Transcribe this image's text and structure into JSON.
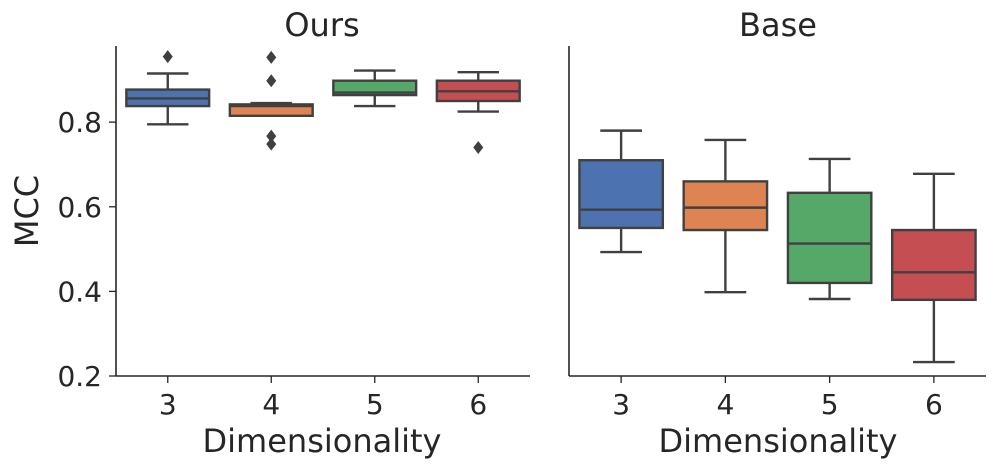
{
  "chart_data": {
    "type": "box",
    "ylabel": "MCC",
    "xlabel": "Dimensionality",
    "ylim": [
      0.2,
      0.98
    ],
    "yticks": [
      0.2,
      0.4,
      0.6,
      0.8
    ],
    "categories": [
      "3",
      "4",
      "5",
      "6"
    ],
    "colors": [
      "#4c72b0",
      "#dd8452",
      "#55a868",
      "#c44e52"
    ],
    "panels": [
      {
        "title": "Ours",
        "boxes": [
          {
            "category": "3",
            "whisker_low": 0.795,
            "q1": 0.838,
            "median": 0.856,
            "q3": 0.877,
            "whisker_high": 0.915,
            "outliers": [
              0.955
            ]
          },
          {
            "category": "4",
            "whisker_low": 0.815,
            "q1": 0.815,
            "median": 0.838,
            "q3": 0.842,
            "whisker_high": 0.845,
            "outliers": [
              0.953,
              0.898,
              0.767,
              0.748
            ]
          },
          {
            "category": "5",
            "whisker_low": 0.838,
            "q1": 0.864,
            "median": 0.87,
            "q3": 0.898,
            "whisker_high": 0.922,
            "outliers": []
          },
          {
            "category": "6",
            "whisker_low": 0.825,
            "q1": 0.85,
            "median": 0.873,
            "q3": 0.898,
            "whisker_high": 0.918,
            "outliers": [
              0.74
            ]
          }
        ]
      },
      {
        "title": "Base",
        "boxes": [
          {
            "category": "3",
            "whisker_low": 0.493,
            "q1": 0.55,
            "median": 0.593,
            "q3": 0.71,
            "whisker_high": 0.78,
            "outliers": []
          },
          {
            "category": "4",
            "whisker_low": 0.398,
            "q1": 0.545,
            "median": 0.598,
            "q3": 0.66,
            "whisker_high": 0.758,
            "outliers": []
          },
          {
            "category": "5",
            "whisker_low": 0.382,
            "q1": 0.42,
            "median": 0.513,
            "q3": 0.633,
            "whisker_high": 0.713,
            "outliers": []
          },
          {
            "category": "6",
            "whisker_low": 0.233,
            "q1": 0.38,
            "median": 0.445,
            "q3": 0.545,
            "whisker_high": 0.678,
            "outliers": []
          }
        ]
      }
    ]
  }
}
